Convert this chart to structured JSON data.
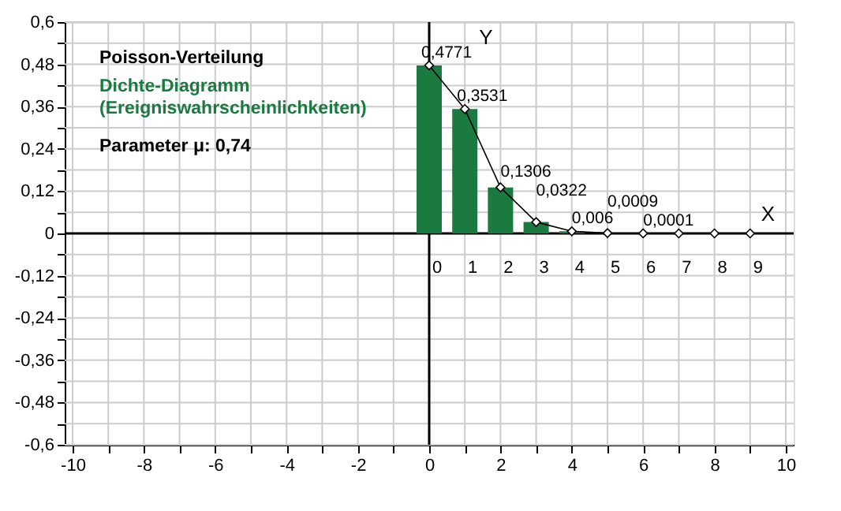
{
  "chart_data": {
    "type": "bar",
    "title": "Poisson-Verteilung",
    "subtitle": "Dichte-Diagramm (Ereigniswahrscheinlichkeiten)",
    "xlabel": "X",
    "ylabel": "Y",
    "annotations": [
      "Parameter μ: 0,74",
      {
        "text": "0",
        "x": 0,
        "y": 0
      },
      {
        "text": "1",
        "x": 1,
        "y": 0
      },
      {
        "text": "2",
        "x": 2,
        "y": 0
      },
      {
        "text": "3",
        "x": 3,
        "y": 0
      },
      {
        "text": "4",
        "x": 4,
        "y": 0
      },
      {
        "text": "5",
        "x": 5,
        "y": 0
      },
      {
        "text": "6",
        "x": 6,
        "y": 0
      },
      {
        "text": "7",
        "x": 7,
        "y": 0
      },
      {
        "text": "8",
        "x": 8,
        "y": 0
      },
      {
        "text": "9",
        "x": 9,
        "y": 0
      }
    ],
    "x": [
      0,
      1,
      2,
      3,
      4,
      5,
      6,
      7,
      8,
      9
    ],
    "series": [
      {
        "color": "#1a7a40",
        "values": [
          0.4771,
          0.3531,
          0.1306,
          0.0322,
          0.006,
          0.0009,
          0.0001,
          0,
          0,
          0
        ],
        "value_labels": [
          "0,4771",
          "0,3531",
          "0,1306",
          "0,0322",
          "0,006",
          "0,0009",
          "0,0001",
          null,
          null,
          null
        ]
      },
      {
        "type": "line",
        "color": "#000000",
        "marker": "diamond",
        "values": [
          0.4771,
          0.3531,
          0.1306,
          0.0322,
          0.006,
          0.0009,
          0.0001,
          0,
          0,
          0
        ]
      }
    ],
    "xlim": [
      -10,
      10
    ],
    "xticks": [
      -10,
      {
        "value": -9,
        "label": null
      },
      -8,
      {
        "value": -7,
        "label": null
      },
      -6,
      {
        "value": -5,
        "label": null
      },
      -4,
      {
        "value": -3,
        "label": null
      },
      -2,
      {
        "value": -1,
        "label": null
      },
      0,
      {
        "value": 1,
        "label": null
      },
      2,
      {
        "value": 3,
        "label": null
      },
      4,
      {
        "value": 5,
        "label": null
      },
      6,
      {
        "value": 7,
        "label": null
      },
      8,
      {
        "value": 9,
        "label": null
      },
      10
    ],
    "ylim": [
      -0.6,
      0.6
    ],
    "yticks": [
      {
        "value": -0.6,
        "label": "-0,6"
      },
      {
        "value": -0.54,
        "label": null
      },
      {
        "value": -0.48,
        "label": "-0,48"
      },
      {
        "value": -0.42,
        "label": null
      },
      {
        "value": -0.36,
        "label": "-0,36"
      },
      {
        "value": -0.3,
        "label": null
      },
      {
        "value": -0.24,
        "label": "-0,24"
      },
      {
        "value": -0.18,
        "label": null
      },
      {
        "value": -0.12,
        "label": "-0,12"
      },
      {
        "value": -0.06,
        "label": null
      },
      0,
      {
        "value": 0.06,
        "label": null
      },
      {
        "value": 0.12,
        "label": "0,12"
      },
      {
        "value": 0.18,
        "label": null
      },
      {
        "value": 0.24,
        "label": "0,24"
      },
      {
        "value": 0.3,
        "label": null
      },
      {
        "value": 0.36,
        "label": "0,36"
      },
      {
        "value": 0.42,
        "label": null
      },
      {
        "value": 0.48,
        "label": "0,48"
      },
      {
        "value": 0.54,
        "label": null
      },
      {
        "value": 0.6,
        "label": "0,6"
      }
    ],
    "grid": true
  }
}
